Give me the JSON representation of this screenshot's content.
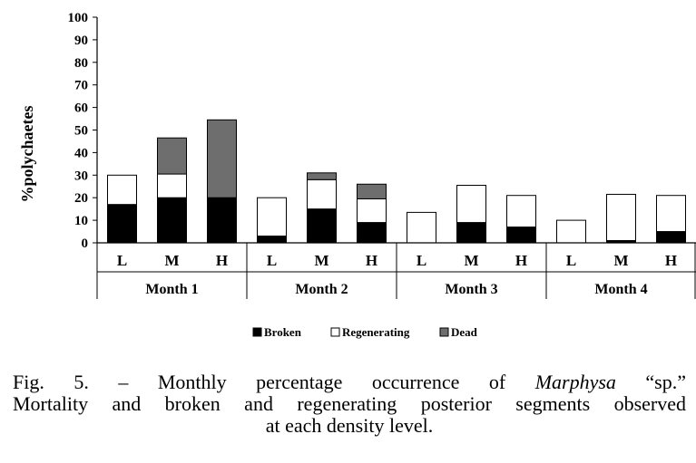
{
  "chart_data": {
    "type": "bar",
    "stacked": true,
    "ylabel": "%polychaetes",
    "xlabel": "",
    "ylim": [
      0,
      100
    ],
    "yticks": [
      "0",
      "10",
      "20",
      "30",
      "40",
      "50",
      "60",
      "70",
      "80",
      "90",
      "100"
    ],
    "groups": [
      "Month 1",
      "Month 2",
      "Month 3",
      "Month 4"
    ],
    "categories": [
      "L",
      "M",
      "H",
      "L",
      "M",
      "H",
      "L",
      "M",
      "H",
      "L",
      "M",
      "H"
    ],
    "series": [
      {
        "name": "Broken",
        "color": "#000000",
        "values": [
          17,
          20,
          20,
          3,
          15,
          9,
          0,
          9,
          7,
          0,
          1,
          5
        ]
      },
      {
        "name": "Regenerating",
        "color": "#ffffff",
        "values": [
          13,
          10.5,
          0,
          17,
          13,
          10.5,
          13.5,
          16.5,
          14,
          10,
          20.5,
          16
        ]
      },
      {
        "name": "Dead",
        "color": "#6e6e6e",
        "values": [
          0,
          16,
          34.5,
          0,
          3,
          6.5,
          0,
          0,
          0,
          0,
          0,
          0
        ]
      }
    ],
    "grid": false,
    "legend": "bottom"
  },
  "caption": {
    "l1_pre": "Fig. 5. – Monthly percentage occurrence of ",
    "l1_species": "Marphysa",
    "l1_post": " “sp.”",
    "l2": "Mortality and broken and regenerating posterior segments observed",
    "l3": "at each density level."
  }
}
